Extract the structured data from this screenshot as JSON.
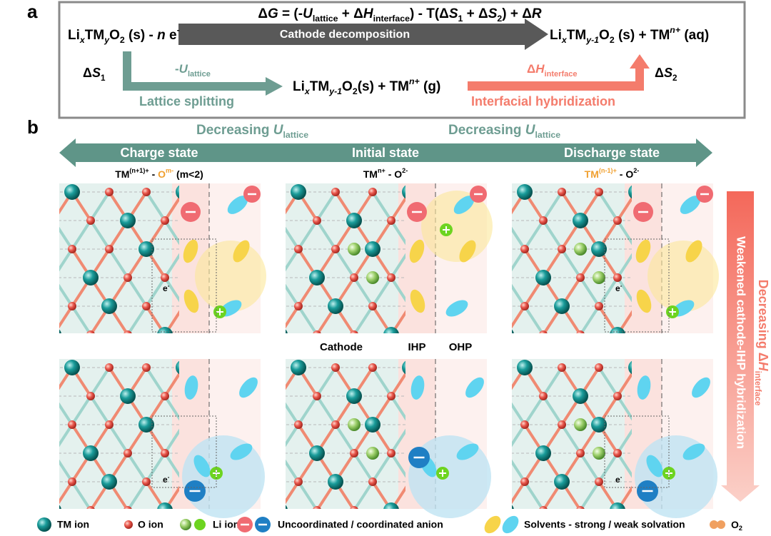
{
  "panel_a": {
    "label": "a",
    "equation": [
      "Δ",
      "G",
      " = (-",
      "U",
      "lattice",
      " + Δ",
      "H",
      "interface",
      ") - T(Δ",
      "S",
      "1",
      " + Δ",
      "S",
      "2",
      ") + Δ",
      "R"
    ],
    "reactant": [
      "Li",
      "x",
      "TM",
      "y",
      "O",
      "2",
      " (s) - ",
      "n",
      " e",
      "-"
    ],
    "product": [
      "Li",
      "x",
      "TM",
      "y-1",
      "O",
      "2",
      " (s) + TM",
      "n+",
      " (aq)"
    ],
    "decomposition_label": "Cathode decomposition",
    "entropy_1": [
      "Δ",
      "S",
      "1"
    ],
    "lattice_term": [
      "-",
      "U",
      "lattice"
    ],
    "lattice_label": "Lattice splitting",
    "intermediate": [
      "Li",
      "x",
      "TM",
      "y-1",
      "O",
      "2",
      "(s) + TM",
      "n+",
      " (g)"
    ],
    "interface_term": [
      "Δ",
      "H",
      "interface"
    ],
    "interface_label": "Interfacial hybridization",
    "entropy_2": [
      "Δ",
      "S",
      "2"
    ]
  },
  "panel_b": {
    "label": "b",
    "decreasing_lattice": [
      "Decreasing ",
      "U",
      "lattice"
    ],
    "states": [
      "Charge state",
      "Initial state",
      "Discharge state"
    ],
    "charge_bond": [
      "TM",
      "(n+1)+",
      " - ",
      "O",
      "m-",
      " (m<2)"
    ],
    "initial_bond": [
      "TM",
      "n+",
      " - O",
      "2-"
    ],
    "discharge_bond": [
      "TM",
      "(n-1)+",
      " - O",
      "2-"
    ],
    "regions": [
      "Cathode",
      "IHP",
      "OHP"
    ],
    "electron_label": [
      "e",
      "-"
    ],
    "vertical_arrow_label": "Weakened cathode-IHP hybridization",
    "decreasing_interface": [
      "Decreasing Δ",
      "H",
      "interface"
    ]
  },
  "legend": {
    "tm_ion": "TM ion",
    "o_ion": "O ion",
    "li_ion": "Li ion",
    "anion": "Uncoordinated / coordinated anion",
    "solvents": "Solvents - strong / weak solvation",
    "o2": [
      "O",
      "2"
    ]
  }
}
